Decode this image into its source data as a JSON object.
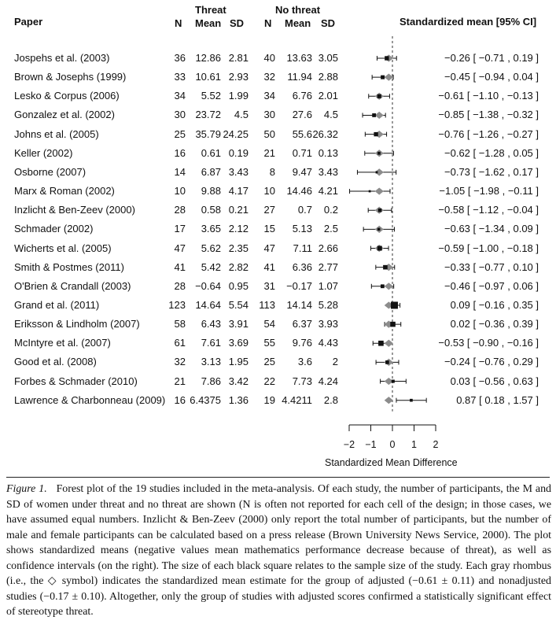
{
  "headers": {
    "paper": "Paper",
    "threat": "Threat",
    "no_threat": "No threat",
    "n": "N",
    "mean": "Mean",
    "sd": "SD",
    "ci_header": "Standardized mean [95% CI]"
  },
  "rows": [
    {
      "paper": "Jospehs et al. (2003)",
      "tN": "36",
      "tMean": "12.86",
      "tSD": "2.81",
      "nN": "40",
      "nMean": "13.63",
      "nSD": "3.05",
      "ci_text": "−0.26 [ −0.71 ,  0.19 ]"
    },
    {
      "paper": "Brown & Josephs (1999)",
      "tN": "33",
      "tMean": "10.61",
      "tSD": "2.93",
      "nN": "32",
      "nMean": "11.94",
      "nSD": "2.88",
      "ci_text": "−0.45 [ −0.94 ,  0.04 ]"
    },
    {
      "paper": "Lesko & Corpus (2006)",
      "tN": "34",
      "tMean": "5.52",
      "tSD": "1.99",
      "nN": "34",
      "nMean": "6.76",
      "nSD": "2.01",
      "ci_text": "−0.61 [ −1.10 , −0.13 ]"
    },
    {
      "paper": "Gonzalez et al. (2002)",
      "tN": "30",
      "tMean": "23.72",
      "tSD": "4.5",
      "nN": "30",
      "nMean": "27.6",
      "nSD": "4.5",
      "ci_text": "−0.85 [ −1.38 , −0.32 ]"
    },
    {
      "paper": "Johns et al. (2005)",
      "tN": "25",
      "tMean": "35.79",
      "tSD": "24.25",
      "nN": "50",
      "nMean": "55.6",
      "nSD": "26.32",
      "ci_text": "−0.76 [ −1.26 , −0.27 ]"
    },
    {
      "paper": "Keller (2002)",
      "tN": "16",
      "tMean": "0.61",
      "tSD": "0.19",
      "nN": "21",
      "nMean": "0.71",
      "nSD": "0.13",
      "ci_text": "−0.62 [ −1.28 ,  0.05 ]"
    },
    {
      "paper": "Osborne (2007)",
      "tN": "14",
      "tMean": "6.87",
      "tSD": "3.43",
      "nN": "8",
      "nMean": "9.47",
      "nSD": "3.43",
      "ci_text": "−0.73 [ −1.62 ,  0.17 ]"
    },
    {
      "paper": "Marx & Roman (2002)",
      "tN": "10",
      "tMean": "9.88",
      "tSD": "4.17",
      "nN": "10",
      "nMean": "14.46",
      "nSD": "4.21",
      "ci_text": "−1.05 [ −1.98 , −0.11 ]"
    },
    {
      "paper": "Inzlicht & Ben-Zeev (2000)",
      "tN": "28",
      "tMean": "0.58",
      "tSD": "0.21",
      "nN": "27",
      "nMean": "0.7",
      "nSD": "0.2",
      "ci_text": "−0.58 [ −1.12 , −0.04 ]"
    },
    {
      "paper": "Schmader (2002)",
      "tN": "17",
      "tMean": "3.65",
      "tSD": "2.12",
      "nN": "15",
      "nMean": "5.13",
      "nSD": "2.5",
      "ci_text": "−0.63 [ −1.34 ,  0.09 ]"
    },
    {
      "paper": "Wicherts et al. (2005)",
      "tN": "47",
      "tMean": "5.62",
      "tSD": "2.35",
      "nN": "47",
      "nMean": "7.11",
      "nSD": "2.66",
      "ci_text": "−0.59 [ −1.00 , −0.18 ]"
    },
    {
      "paper": "Smith & Postmes (2011)",
      "tN": "41",
      "tMean": "5.42",
      "tSD": "2.82",
      "nN": "41",
      "nMean": "6.36",
      "nSD": "2.77",
      "ci_text": "−0.33 [ −0.77 ,  0.10 ]"
    },
    {
      "paper": "O'Brien & Crandall (2003)",
      "tN": "28",
      "tMean": "−0.64",
      "tSD": "0.95",
      "nN": "31",
      "nMean": "−0.17",
      "nSD": "1.07",
      "ci_text": "−0.46 [ −0.97 ,  0.06 ]"
    },
    {
      "paper": "Grand et al. (2011)",
      "tN": "123",
      "tMean": "14.64",
      "tSD": "5.54",
      "nN": "113",
      "nMean": "14.14",
      "nSD": "5.28",
      "ci_text": " 0.09 [ −0.16 ,  0.35 ]"
    },
    {
      "paper": "Eriksson & Lindholm (2007)",
      "tN": "58",
      "tMean": "6.43",
      "tSD": "3.91",
      "nN": "54",
      "nMean": "6.37",
      "nSD": "3.93",
      "ci_text": " 0.02 [ −0.36 ,  0.39 ]"
    },
    {
      "paper": "McIntyre et al. (2007)",
      "tN": "61",
      "tMean": "7.61",
      "tSD": "3.69",
      "nN": "55",
      "nMean": "9.76",
      "nSD": "4.43",
      "ci_text": "−0.53 [ −0.90 , −0.16 ]"
    },
    {
      "paper": "Good et al. (2008)",
      "tN": "32",
      "tMean": "3.13",
      "tSD": "1.95",
      "nN": "25",
      "nMean": "3.6",
      "nSD": "2",
      "ci_text": "−0.24 [ −0.76 ,  0.29 ]"
    },
    {
      "paper": "Forbes & Schmader (2010)",
      "tN": "21",
      "tMean": "7.86",
      "tSD": "3.42",
      "nN": "22",
      "nMean": "7.73",
      "nSD": "4.24",
      "ci_text": " 0.03 [ −0.56 ,  0.63 ]"
    },
    {
      "paper": "Lawrence & Charbonneau (2009)",
      "tN": "16",
      "tMean": "6.4375",
      "tSD": "1.36",
      "nN": "19",
      "nMean": "4.4211",
      "nSD": "2.8",
      "ci_text": " 0.87 [  0.18 ,  1.57 ]"
    }
  ],
  "chart_data": {
    "type": "forest",
    "xlabel": "Standardized Mean Difference",
    "xlim": [
      -2,
      2
    ],
    "ticks": [
      -2,
      -1,
      0,
      1,
      2
    ],
    "tick_labels": [
      "−2",
      "−1",
      "0",
      "1",
      "2"
    ],
    "reference_line": 0,
    "studies": [
      {
        "name": "Jospehs et al. (2003)",
        "estimate": -0.26,
        "lower": -0.71,
        "upper": 0.19,
        "subgroup_estimate": -0.17
      },
      {
        "name": "Brown & Josephs (1999)",
        "estimate": -0.45,
        "lower": -0.94,
        "upper": 0.04,
        "subgroup_estimate": -0.17
      },
      {
        "name": "Lesko & Corpus (2006)",
        "estimate": -0.61,
        "lower": -1.1,
        "upper": -0.13,
        "subgroup_estimate": -0.61
      },
      {
        "name": "Gonzalez et al. (2002)",
        "estimate": -0.85,
        "lower": -1.38,
        "upper": -0.32,
        "subgroup_estimate": -0.61
      },
      {
        "name": "Johns et al. (2005)",
        "estimate": -0.76,
        "lower": -1.26,
        "upper": -0.27,
        "subgroup_estimate": -0.61
      },
      {
        "name": "Keller (2002)",
        "estimate": -0.62,
        "lower": -1.28,
        "upper": 0.05,
        "subgroup_estimate": -0.61
      },
      {
        "name": "Osborne (2007)",
        "estimate": -0.73,
        "lower": -1.62,
        "upper": 0.17,
        "subgroup_estimate": -0.61
      },
      {
        "name": "Marx & Roman (2002)",
        "estimate": -1.05,
        "lower": -1.98,
        "upper": -0.11,
        "subgroup_estimate": -0.61
      },
      {
        "name": "Inzlicht & Ben-Zeev (2000)",
        "estimate": -0.58,
        "lower": -1.12,
        "upper": -0.04,
        "subgroup_estimate": -0.61
      },
      {
        "name": "Schmader (2002)",
        "estimate": -0.63,
        "lower": -1.34,
        "upper": 0.09,
        "subgroup_estimate": -0.61
      },
      {
        "name": "Wicherts et al. (2005)",
        "estimate": -0.59,
        "lower": -1.0,
        "upper": -0.18,
        "subgroup_estimate": -0.61
      },
      {
        "name": "Smith & Postmes (2011)",
        "estimate": -0.33,
        "lower": -0.77,
        "upper": 0.1,
        "subgroup_estimate": -0.17
      },
      {
        "name": "O'Brien & Crandall (2003)",
        "estimate": -0.46,
        "lower": -0.97,
        "upper": 0.06,
        "subgroup_estimate": -0.17
      },
      {
        "name": "Grand et al. (2011)",
        "estimate": 0.09,
        "lower": -0.16,
        "upper": 0.35,
        "subgroup_estimate": -0.17
      },
      {
        "name": "Eriksson & Lindholm (2007)",
        "estimate": 0.02,
        "lower": -0.36,
        "upper": 0.39,
        "subgroup_estimate": -0.17
      },
      {
        "name": "McIntyre et al. (2007)",
        "estimate": -0.53,
        "lower": -0.9,
        "upper": -0.16,
        "subgroup_estimate": -0.17
      },
      {
        "name": "Good et al. (2008)",
        "estimate": -0.24,
        "lower": -0.76,
        "upper": 0.29,
        "subgroup_estimate": -0.17
      },
      {
        "name": "Forbes & Schmader (2010)",
        "estimate": 0.03,
        "lower": -0.56,
        "upper": 0.63,
        "subgroup_estimate": -0.17
      },
      {
        "name": "Lawrence & Charbonneau (2009)",
        "estimate": 0.87,
        "lower": 0.18,
        "upper": 1.57,
        "subgroup_estimate": -0.17
      }
    ],
    "colors": {
      "marker": "#111111",
      "rhombus": "#8c8c8c",
      "line": "#111111"
    }
  },
  "caption": {
    "label": "Figure 1.",
    "text": "Forest plot of the 19 studies included in the meta-analysis. Of each study, the number of participants, the M and SD of women under threat and no threat are shown (N is often not reported for each cell of the design; in those cases, we have assumed equal numbers. Inzlicht & Ben-Zeev (2000) only report the total number of participants, but the number of male and female participants can be calculated based on a press release (Brown University News Service, 2000). The plot shows standardized means (negative values mean mathematics performance decrease because of threat), as well as confidence intervals (on the right). The size of each black square relates to the sample size of the study. Each gray rhombus (i.e., the ◇ symbol) indicates the standardized mean estimate for the group of adjusted (−0.61 ± 0.11) and nonadjusted studies (−0.17 ± 0.10). Altogether, only the group of studies with adjusted scores confirmed a statistically significant effect of stereotype threat."
  }
}
